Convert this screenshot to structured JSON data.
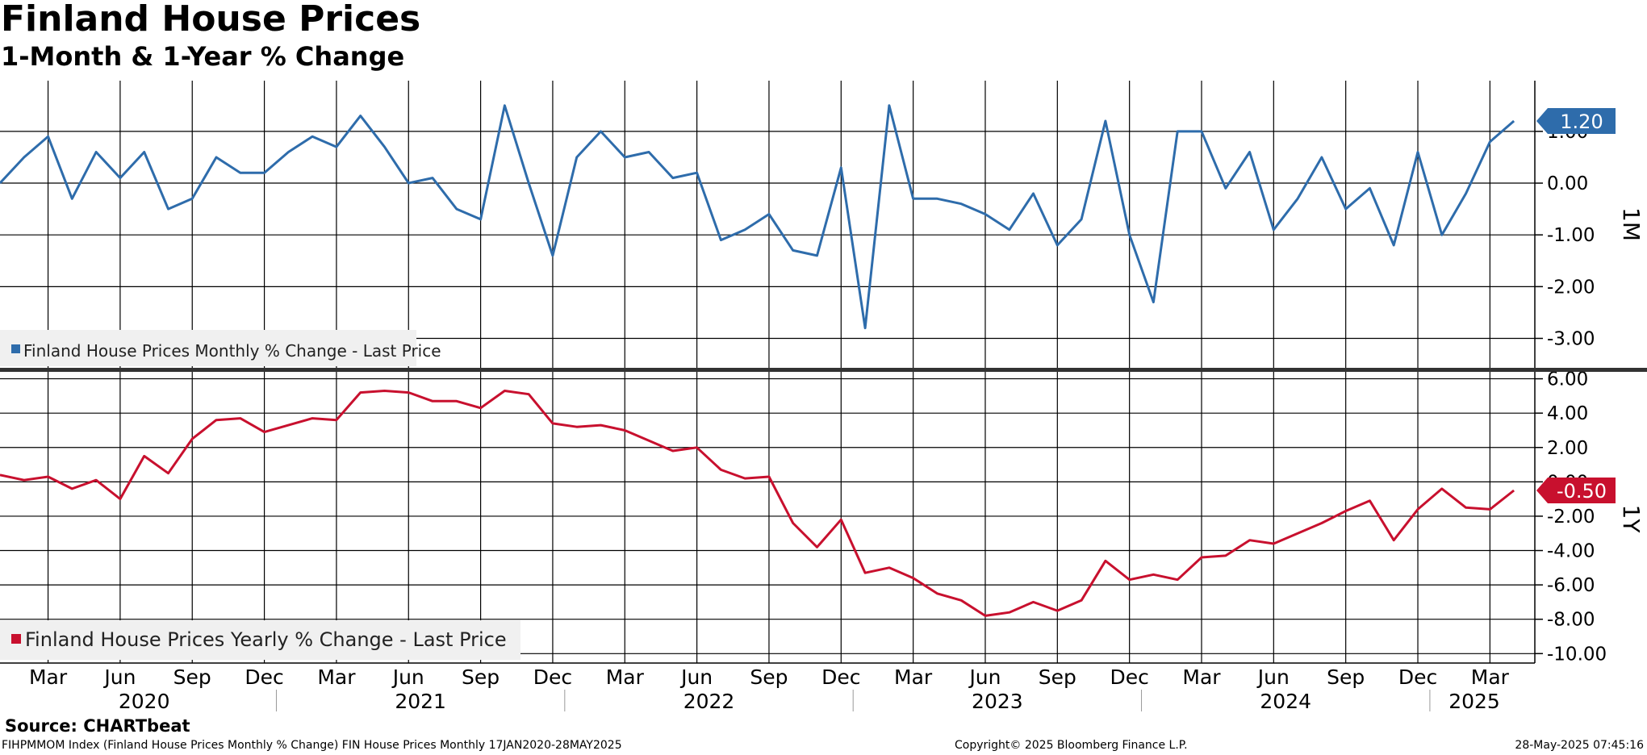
{
  "header": {
    "title": "Finland House Prices",
    "subtitle": "1-Month & 1-Year % Change"
  },
  "source": "Source: CHARTbeat",
  "footer": {
    "left": "FIHPMMOM Index (Finland House Prices Monthly % Change) FIN House Prices  Monthly 17JAN2020-28MAY2025",
    "center": "Copyright© 2025 Bloomberg Finance L.P.",
    "right": "28-May-2025 07:45:16"
  },
  "colors": {
    "monthly": "#2E6CAB",
    "yearly": "#C8102E"
  },
  "chart_data": [
    {
      "type": "line",
      "panel_label": "1M",
      "legend": "Finland House Prices Monthly % Change - Last Price",
      "legend_position": "bottom-left",
      "last_value_label": "1.20",
      "y_ticks": [
        "1.00",
        "0.00",
        "-1.00",
        "-2.00",
        "-3.00"
      ],
      "y_tick_values": [
        1,
        0,
        -1,
        -2,
        -3
      ],
      "ylim": [
        -3.6,
        1.98
      ],
      "x_start": "2020-01",
      "x_end": "2025-04",
      "values": [
        0.0,
        0.5,
        0.9,
        -0.3,
        0.6,
        0.1,
        0.6,
        -0.5,
        -0.3,
        0.5,
        0.2,
        0.2,
        0.6,
        0.9,
        0.7,
        1.3,
        0.7,
        0.0,
        0.1,
        -0.5,
        -0.7,
        1.5,
        0.0,
        -1.4,
        0.5,
        1.0,
        0.5,
        0.6,
        0.1,
        0.2,
        -1.1,
        -0.9,
        -0.6,
        -1.3,
        -1.4,
        0.3,
        -2.8,
        1.5,
        -0.3,
        -0.3,
        -0.4,
        -0.6,
        -0.9,
        -0.2,
        -1.2,
        -0.7,
        1.2,
        -1.0,
        -2.3,
        1.0,
        1.0,
        -0.1,
        0.6,
        -0.9,
        -0.3,
        0.5,
        -0.5,
        -0.1,
        -1.2,
        0.6,
        -1.0,
        -0.2,
        0.8,
        1.2
      ],
      "grid": true
    },
    {
      "type": "line",
      "panel_label": "1Y",
      "legend": "Finland House Prices Yearly % Change - Last Price",
      "legend_position": "bottom-left",
      "last_value_label": "-0.50",
      "y_ticks": [
        "6.00",
        "4.00",
        "2.00",
        "0.00",
        "-2.00",
        "-4.00",
        "-6.00",
        "-8.00",
        "-10.00"
      ],
      "y_tick_values": [
        6,
        4,
        2,
        0,
        -2,
        -4,
        -6,
        -8,
        -10
      ],
      "ylim": [
        -10.55,
        6.45
      ],
      "x_start": "2020-01",
      "x_end": "2025-04",
      "values": [
        0.4,
        0.1,
        0.3,
        -0.4,
        0.1,
        -1.0,
        1.5,
        0.5,
        2.5,
        3.6,
        3.7,
        2.9,
        3.3,
        3.7,
        3.6,
        5.2,
        5.3,
        5.2,
        4.7,
        4.7,
        4.3,
        5.3,
        5.1,
        3.4,
        3.2,
        3.3,
        3.0,
        2.4,
        1.8,
        2.0,
        0.7,
        0.2,
        0.3,
        -2.4,
        -3.8,
        -2.2,
        -5.3,
        -5.0,
        -5.6,
        -6.5,
        -6.9,
        -7.8,
        -7.6,
        -7.0,
        -7.5,
        -6.9,
        -4.6,
        -5.7,
        -5.4,
        -5.7,
        -4.4,
        -4.3,
        -3.4,
        -3.6,
        -3.0,
        -2.4,
        -1.7,
        -1.1,
        -3.4,
        -1.6,
        -0.4,
        -1.5,
        -1.6,
        -0.5
      ],
      "grid": true
    }
  ],
  "x_axis": {
    "month_ticks": [
      {
        "label": "Mar",
        "index": 2
      },
      {
        "label": "Jun",
        "index": 5
      },
      {
        "label": "Sep",
        "index": 8
      },
      {
        "label": "Dec",
        "index": 11
      },
      {
        "label": "Mar",
        "index": 14
      },
      {
        "label": "Jun",
        "index": 17
      },
      {
        "label": "Sep",
        "index": 20
      },
      {
        "label": "Dec",
        "index": 23
      },
      {
        "label": "Mar",
        "index": 26
      },
      {
        "label": "Jun",
        "index": 29
      },
      {
        "label": "Sep",
        "index": 32
      },
      {
        "label": "Dec",
        "index": 35
      },
      {
        "label": "Mar",
        "index": 38
      },
      {
        "label": "Jun",
        "index": 41
      },
      {
        "label": "Sep",
        "index": 44
      },
      {
        "label": "Dec",
        "index": 47
      },
      {
        "label": "Mar",
        "index": 50
      },
      {
        "label": "Jun",
        "index": 53
      },
      {
        "label": "Sep",
        "index": 56
      },
      {
        "label": "Dec",
        "index": 59
      },
      {
        "label": "Mar",
        "index": 62
      }
    ],
    "years": [
      {
        "label": "2020",
        "start": 0,
        "end": 12
      },
      {
        "label": "2021",
        "start": 12,
        "end": 24
      },
      {
        "label": "2022",
        "start": 24,
        "end": 36
      },
      {
        "label": "2023",
        "start": 36,
        "end": 48
      },
      {
        "label": "2024",
        "start": 48,
        "end": 60
      },
      {
        "label": "2025",
        "start": 60,
        "end": 64
      }
    ]
  }
}
